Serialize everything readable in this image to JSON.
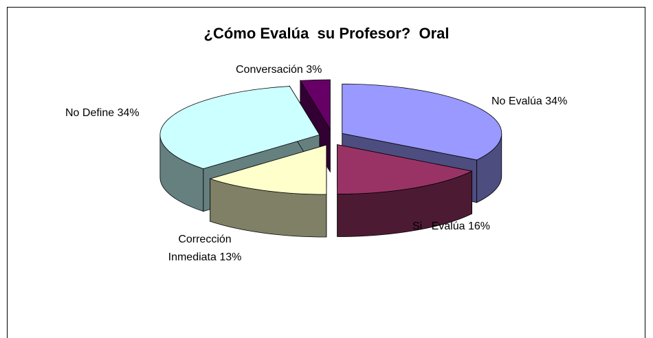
{
  "chart_data": {
    "type": "pie3d",
    "title": "¿Cómo Evalúa  su Profesor?  Oral",
    "categories": [
      "No Evalúa",
      "Si   Evalúa",
      "Corrección Inmediata",
      "No Define",
      "Conversación"
    ],
    "values": [
      34,
      16,
      13,
      34,
      3
    ],
    "value_labels": [
      "34%",
      "16%",
      "13%",
      "34%",
      "3%"
    ],
    "colors": [
      "#9999ff",
      "#993366",
      "#ffffcc",
      "#ccffff",
      "#660066"
    ]
  }
}
